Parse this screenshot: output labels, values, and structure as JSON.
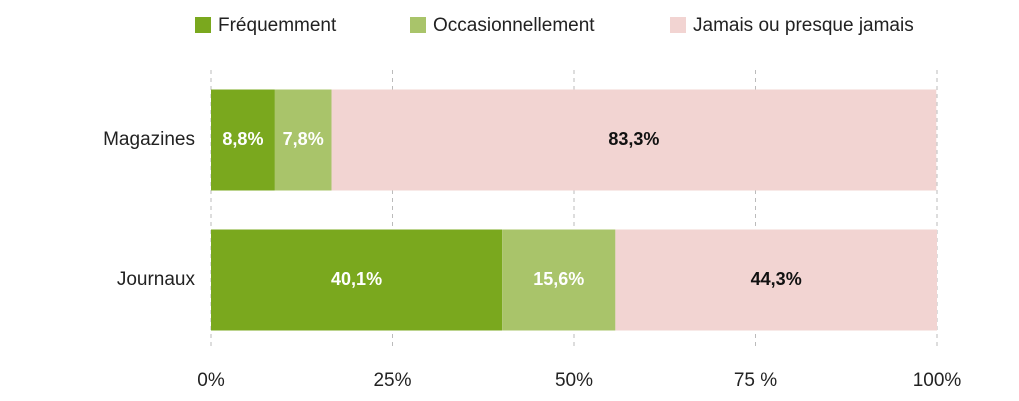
{
  "chart_data": {
    "type": "stacked_barh",
    "categories": [
      "Magazines",
      "Journaux"
    ],
    "series": [
      {
        "name": "Fréquemment",
        "color": "#7aa81e",
        "values": [
          8.8,
          40.1
        ],
        "value_labels": [
          "8,8%",
          "40,1%"
        ]
      },
      {
        "name": "Occasionnellement",
        "color": "#a9c46a",
        "values": [
          7.8,
          15.6
        ],
        "value_labels": [
          "7,8%",
          "15,6%"
        ]
      },
      {
        "name": "Jamais ou presque jamais",
        "color": "#f2d4d2",
        "values": [
          83.3,
          44.3
        ],
        "value_labels": [
          "83,3%",
          "44,3%"
        ]
      }
    ],
    "xlim": [
      0,
      100
    ],
    "xticks": [
      {
        "value": 0,
        "label": "0%"
      },
      {
        "value": 25,
        "label": "25%"
      },
      {
        "value": 50,
        "label": "50%"
      },
      {
        "value": 75,
        "label": "75 %"
      },
      {
        "value": 100,
        "label": "100%"
      }
    ],
    "grid": true,
    "legend": "top"
  }
}
